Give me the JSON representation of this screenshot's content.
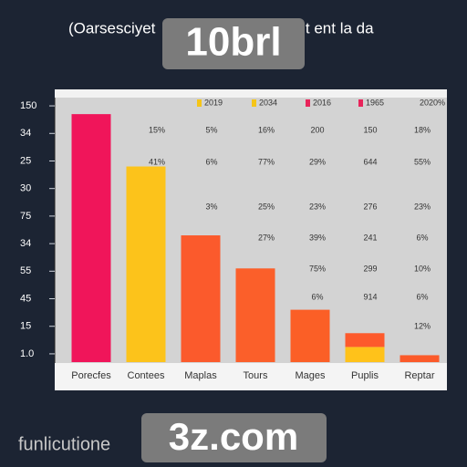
{
  "chart_data": {
    "type": "bar",
    "title_parts": [
      "(Oarsesciyet",
      "aut ent la da"
    ],
    "badges": [
      "10brl",
      "3z.com"
    ],
    "footer": "funlicutione",
    "categories": [
      "Porecfes",
      "Contees",
      "Maplas",
      "Tours",
      "Mages",
      "Puplis",
      "Reptar"
    ],
    "series": [
      {
        "values": [
          9.0,
          7.1,
          4.6,
          3.4,
          1.9,
          0.55,
          0.25
        ],
        "colors": [
          "#f0155a",
          "#fcc31b",
          "#fb5a2c",
          "#fb5f2a",
          "#fb5f26",
          "#ffc21a",
          "#fb5a2a"
        ]
      },
      {
        "values": [
          null,
          null,
          null,
          null,
          null,
          0.5,
          null
        ],
        "color": "#fd5a2c"
      }
    ],
    "legend": [
      {
        "label": "2019",
        "color": "#f5c518"
      },
      {
        "label": "2034",
        "color": "#f5c518"
      },
      {
        "label": "2016",
        "color": "#e8245a"
      },
      {
        "label": "1965",
        "color": "#e8245a"
      },
      {
        "label": "2020%",
        "color": null
      }
    ],
    "annotations": [
      [
        "15%",
        "5%",
        "16%",
        "200",
        "150",
        "18%"
      ],
      [
        "41%",
        "6%",
        "77%",
        "29%",
        "644",
        "55%"
      ],
      [
        null,
        "3%",
        "25%",
        "23%",
        "276",
        "23%"
      ],
      [
        null,
        null,
        "27%",
        "39%",
        "241",
        "6%"
      ],
      [
        null,
        null,
        null,
        "75%",
        "299",
        "10%"
      ],
      [
        null,
        null,
        null,
        "6%",
        "914",
        "6%"
      ],
      [
        null,
        null,
        null,
        null,
        null,
        "12%"
      ]
    ],
    "ylim": [
      0,
      9.6
    ],
    "yticks": [
      {
        "value": 0.3,
        "label": "1.0"
      },
      {
        "value": 1.3,
        "label": "15"
      },
      {
        "value": 2.3,
        "label": "45"
      },
      {
        "value": 3.3,
        "label": "55"
      },
      {
        "value": 4.3,
        "label": "34"
      },
      {
        "value": 5.3,
        "label": "75"
      },
      {
        "value": 6.3,
        "label": "30"
      },
      {
        "value": 7.3,
        "label": "25"
      },
      {
        "value": 8.3,
        "label": "34"
      },
      {
        "value": 9.3,
        "label": "150"
      }
    ]
  }
}
